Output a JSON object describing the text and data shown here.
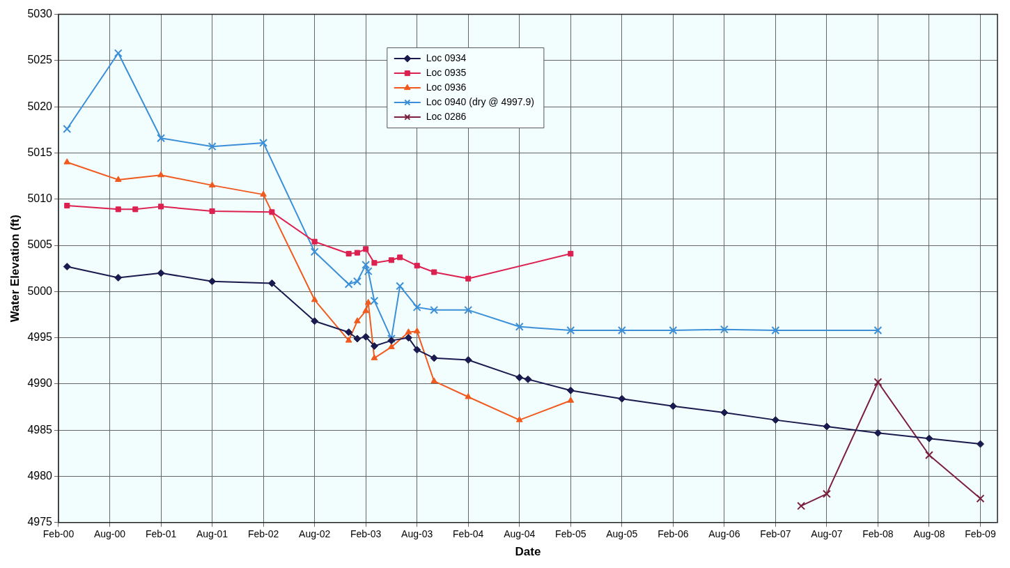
{
  "chart_data": {
    "type": "line",
    "xlabel": "Date",
    "ylabel": "Water Elevation (ft)",
    "xlim": [
      "2000-02",
      "2009-04"
    ],
    "xticks": [
      {
        "value": "2000-02",
        "label": "Feb-00"
      },
      {
        "value": "2000-08",
        "label": "Aug-00"
      },
      {
        "value": "2001-02",
        "label": "Feb-01"
      },
      {
        "value": "2001-08",
        "label": "Aug-01"
      },
      {
        "value": "2002-02",
        "label": "Feb-02"
      },
      {
        "value": "2002-08",
        "label": "Aug-02"
      },
      {
        "value": "2003-02",
        "label": "Feb-03"
      },
      {
        "value": "2003-08",
        "label": "Aug-03"
      },
      {
        "value": "2004-02",
        "label": "Feb-04"
      },
      {
        "value": "2004-08",
        "label": "Aug-04"
      },
      {
        "value": "2005-02",
        "label": "Feb-05"
      },
      {
        "value": "2005-08",
        "label": "Aug-05"
      },
      {
        "value": "2006-02",
        "label": "Feb-06"
      },
      {
        "value": "2006-08",
        "label": "Aug-06"
      },
      {
        "value": "2007-02",
        "label": "Feb-07"
      },
      {
        "value": "2007-08",
        "label": "Aug-07"
      },
      {
        "value": "2008-02",
        "label": "Feb-08"
      },
      {
        "value": "2008-08",
        "label": "Aug-08"
      },
      {
        "value": "2009-02",
        "label": "Feb-09"
      }
    ],
    "ylim": [
      4975,
      5030
    ],
    "yticks": [
      4975,
      4980,
      4985,
      4990,
      4995,
      5000,
      5005,
      5010,
      5015,
      5020,
      5025,
      5030
    ],
    "grid": true,
    "legend": "top",
    "line_style": "solid",
    "series": [
      {
        "name": "Loc 0934",
        "color": "#1a1a4e",
        "marker": "diamond",
        "x": [
          "2000-03",
          "2000-09",
          "2001-02",
          "2001-08",
          "2002-03",
          "2002-08",
          "2002-12",
          "2003-01",
          "2003-02",
          "2003-03",
          "2003-05",
          "2003-07",
          "2003-08",
          "2003-10",
          "2004-02",
          "2004-08",
          "2004-09",
          "2005-02",
          "2005-08",
          "2006-02",
          "2006-08",
          "2007-02",
          "2007-08",
          "2008-02",
          "2008-08",
          "2009-02"
        ],
        "values": [
          5002.7,
          5001.5,
          5002.0,
          5001.1,
          5000.9,
          4996.8,
          4995.6,
          4994.9,
          4995.1,
          4994.1,
          4994.7,
          4995.0,
          4993.7,
          4992.8,
          4992.6,
          4990.7,
          4990.5,
          4989.3,
          4988.4,
          4987.6,
          4986.9,
          4986.1,
          4985.4,
          4984.7,
          4984.1,
          4983.5
        ]
      },
      {
        "name": "Loc 0935",
        "color": "#dc2050",
        "marker": "square",
        "x": [
          "2000-03",
          "2000-09",
          "2000-11",
          "2001-02",
          "2001-08",
          "2002-03",
          "2002-08",
          "2002-12",
          "2003-01",
          "2003-02",
          "2003-03",
          "2003-05",
          "2003-06",
          "2003-08",
          "2003-10",
          "2004-02",
          "2005-02"
        ],
        "values": [
          5009.3,
          5008.9,
          5008.9,
          5009.2,
          5008.7,
          5008.6,
          5005.4,
          5004.1,
          5004.2,
          5004.6,
          5003.1,
          5003.4,
          5003.7,
          5002.8,
          5002.1,
          5001.4,
          5004.1
        ]
      },
      {
        "name": "Loc 0936",
        "color": "#f05a1e",
        "marker": "triangle",
        "x": [
          "2000-03",
          "2000-09",
          "2001-02",
          "2001-08",
          "2002-02",
          "2002-08",
          "2002-12",
          "2003-01",
          "2003-02-01",
          "2003-02-10",
          "2003-03",
          "2003-05",
          "2003-07",
          "2003-08",
          "2003-10",
          "2004-02",
          "2004-08",
          "2005-02"
        ],
        "values": [
          5014.0,
          5012.1,
          5012.6,
          5011.5,
          5010.5,
          4999.1,
          4994.7,
          4996.8,
          4997.9,
          4998.8,
          4992.8,
          4994.0,
          4995.6,
          4995.7,
          4990.3,
          4988.6,
          4986.1,
          4988.2
        ]
      },
      {
        "name": "Loc 0940 (dry @ 4997.9)",
        "color": "#3a8fd8",
        "marker": "cross",
        "x": [
          "2000-03",
          "2000-09",
          "2001-02",
          "2001-08",
          "2002-02",
          "2002-08",
          "2002-12",
          "2003-01",
          "2003-02-01",
          "2003-02-10",
          "2003-03",
          "2003-05",
          "2003-06",
          "2003-08",
          "2003-10",
          "2004-02",
          "2004-08",
          "2005-02",
          "2005-08",
          "2006-02",
          "2006-08",
          "2007-02",
          "2008-02"
        ],
        "values": [
          5017.6,
          5025.8,
          5016.6,
          5015.7,
          5016.1,
          5004.3,
          5000.8,
          5001.1,
          5002.9,
          5002.2,
          4999.0,
          4994.9,
          5000.6,
          4998.3,
          4998.0,
          4998.0,
          4996.2,
          4995.8,
          4995.8,
          4995.8,
          4995.9,
          4995.8,
          4995.8
        ]
      },
      {
        "name": "Loc 0286",
        "color": "#7a1f3d",
        "marker": "cross",
        "x": [
          "2007-05",
          "2007-08",
          "2008-02",
          "2008-08",
          "2009-02"
        ],
        "values": [
          4976.8,
          4978.1,
          4990.2,
          4982.3,
          4977.6
        ]
      }
    ]
  }
}
